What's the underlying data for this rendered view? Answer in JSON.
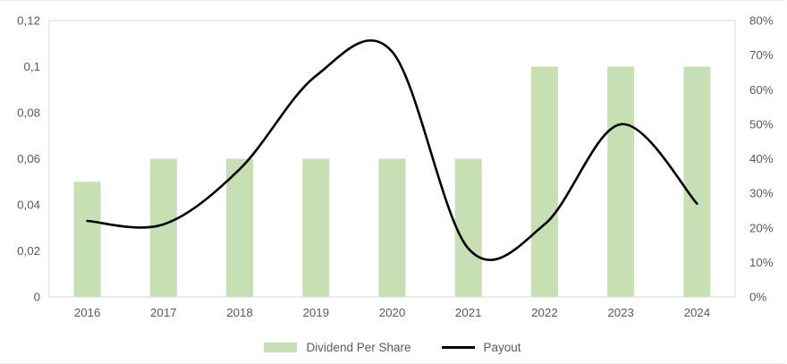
{
  "chart_data": {
    "type": "combo-bar-line",
    "categories": [
      "2016",
      "2017",
      "2018",
      "2019",
      "2020",
      "2021",
      "2022",
      "2023",
      "2024"
    ],
    "series": [
      {
        "name": "Dividend Per Share",
        "type": "bar",
        "axis": "left",
        "color": "#c6e0b4",
        "values": [
          0.05,
          0.06,
          0.06,
          0.06,
          0.06,
          0.06,
          0.1,
          0.1,
          0.1
        ]
      },
      {
        "name": "Payout",
        "type": "line",
        "axis": "right",
        "color": "#000000",
        "smooth": true,
        "values_percent": [
          22,
          21,
          37,
          64,
          71,
          14,
          21,
          50,
          27
        ]
      }
    ],
    "left_axis": {
      "min": 0,
      "max": 0.12,
      "tick_labels": [
        "0,12",
        "0,1",
        "0,08",
        "0,06",
        "0,04",
        "0,02",
        "0"
      ]
    },
    "right_axis": {
      "min": 0,
      "max": 80,
      "tick_labels": [
        "80%",
        "70%",
        "60%",
        "50%",
        "40%",
        "30%",
        "20%",
        "10%",
        "0%"
      ]
    },
    "grid": false,
    "legend_position": "bottom",
    "title": ""
  },
  "legend": {
    "bar_label": "Dividend Per Share",
    "line_label": "Payout"
  },
  "colors": {
    "bar_fill": "#c6e0b4",
    "line_stroke": "#000000",
    "axis_text": "#595959",
    "plot_border": "#d9d9d9",
    "background": "#ffffff"
  }
}
